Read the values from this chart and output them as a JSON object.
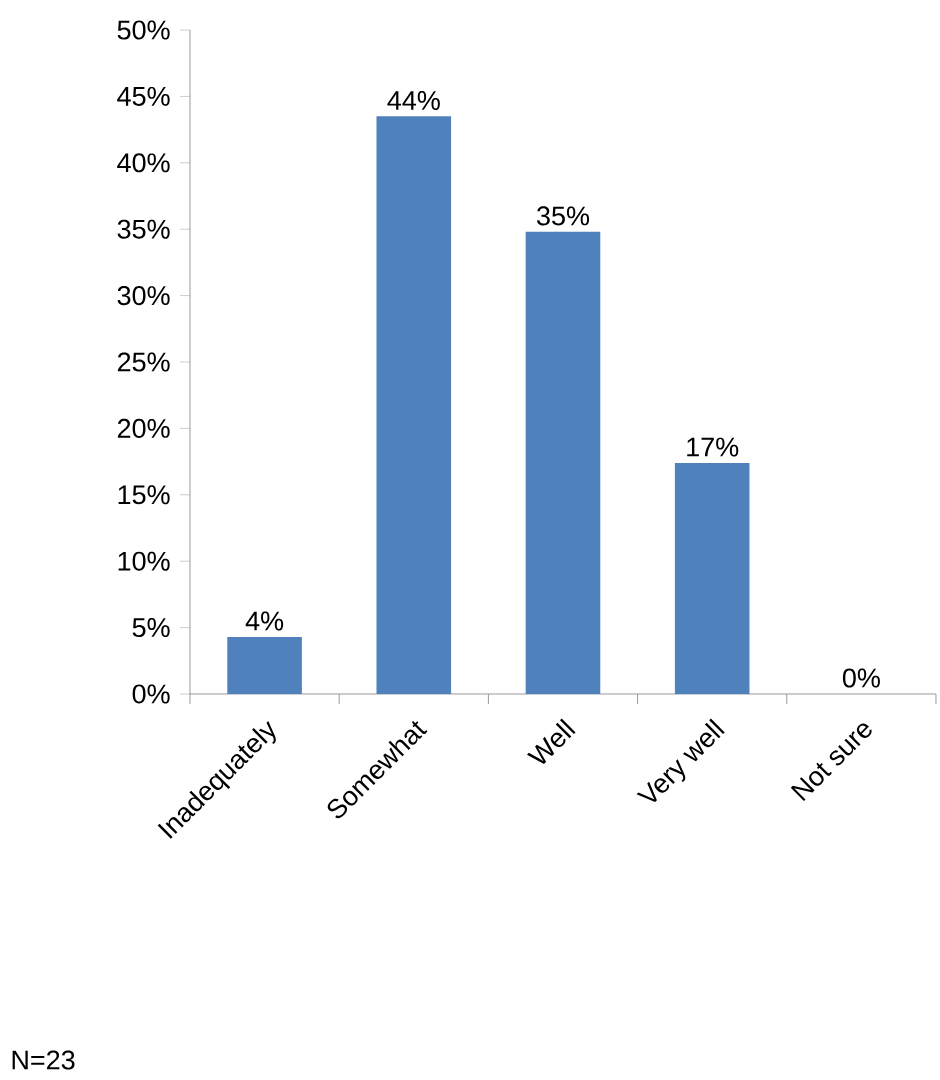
{
  "chart_data": {
    "type": "bar",
    "categories": [
      "Inadequately",
      "Somewhat",
      "Well",
      "Very well",
      "Not sure"
    ],
    "values": [
      4.3,
      43.5,
      34.8,
      17.4,
      0
    ],
    "value_labels": [
      "4%",
      "44%",
      "35%",
      "17%",
      "0%"
    ],
    "color": "#4f81bd",
    "ylim": [
      0,
      50
    ],
    "yticks": [
      {
        "value": 0,
        "label": "0%"
      },
      {
        "value": 5,
        "label": "5%"
      },
      {
        "value": 10,
        "label": "10%"
      },
      {
        "value": 15,
        "label": "15%"
      },
      {
        "value": 20,
        "label": "20%"
      },
      {
        "value": 25,
        "label": "25%"
      },
      {
        "value": 30,
        "label": "30%"
      },
      {
        "value": 35,
        "label": "35%"
      },
      {
        "value": 40,
        "label": "40%"
      },
      {
        "value": 45,
        "label": "45%"
      },
      {
        "value": 50,
        "label": "50%"
      }
    ],
    "grid": false,
    "annotations": [
      "N=23"
    ]
  }
}
